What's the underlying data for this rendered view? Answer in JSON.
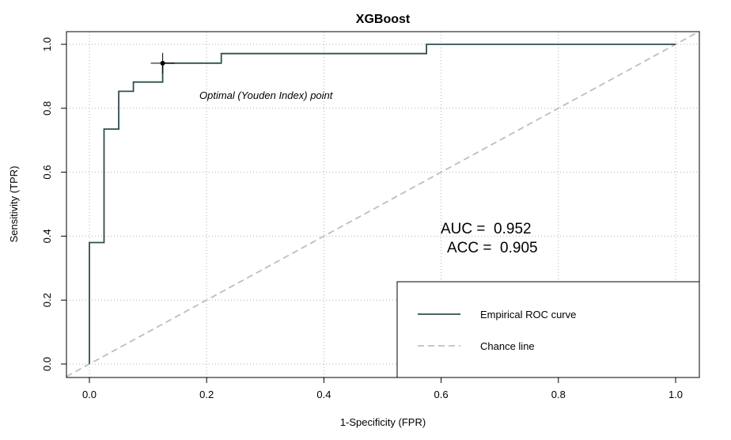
{
  "chart_data": {
    "type": "line",
    "title": "XGBoost",
    "xlabel": "1-Specificity (FPR)",
    "ylabel": "Sensitivity (TPR)",
    "xlim": [
      0,
      1
    ],
    "ylim": [
      0,
      1
    ],
    "x_ticks": [
      "0.0",
      "0.2",
      "0.4",
      "0.6",
      "0.8",
      "1.0"
    ],
    "y_ticks": [
      "0.0",
      "0.2",
      "0.4",
      "0.6",
      "0.8",
      "1.0"
    ],
    "grid": true,
    "series": [
      {
        "name": "Empirical ROC curve",
        "color": "#2f4f4f",
        "style": "solid",
        "x": [
          0,
          0,
          0,
          0.025,
          0.025,
          0.05,
          0.05,
          0.075,
          0.075,
          0.125,
          0.125,
          0.225,
          0.225,
          0.575,
          0.575,
          1.0
        ],
        "y": [
          0,
          0.38,
          0.38,
          0.38,
          0.735,
          0.735,
          0.853,
          0.853,
          0.882,
          0.882,
          0.941,
          0.941,
          0.971,
          0.971,
          1.0,
          1.0
        ]
      },
      {
        "name": "Chance line",
        "color": "#bebebe",
        "style": "dashed",
        "x": [
          0,
          1
        ],
        "y": [
          0,
          1
        ]
      }
    ],
    "optimal_point": {
      "x": 0.125,
      "y": 0.941
    },
    "annotations": {
      "optimal_label": "Optimal (Youden Index) point",
      "auc_label": "AUC =  0.952",
      "acc_label": "ACC =  0.905"
    },
    "legend": {
      "position": "bottom-right",
      "entries": [
        "Empirical ROC curve",
        "Chance line"
      ]
    }
  }
}
